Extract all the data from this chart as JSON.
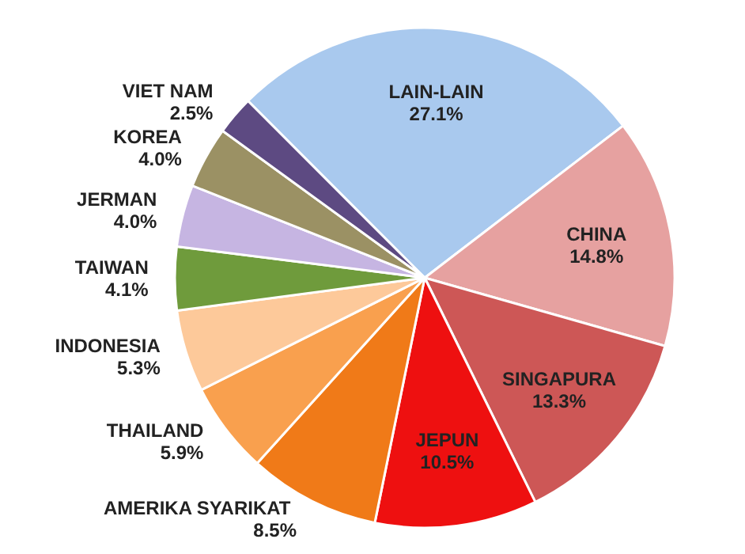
{
  "chart_data": {
    "type": "pie",
    "categories": [
      "LAIN-LAIN",
      "CHINA",
      "SINGAPURA",
      "JEPUN",
      "AMERIKA  SYARIKAT",
      "THAILAND",
      "INDONESIA",
      "TAIWAN",
      "JERMAN",
      "KOREA",
      "VIET NAM"
    ],
    "values": [
      27.1,
      14.8,
      13.3,
      10.5,
      8.5,
      5.9,
      5.3,
      4.1,
      4.0,
      4.0,
      2.5
    ],
    "value_labels": [
      "27.1%",
      "14.8%",
      "13.3%",
      "10.5%",
      "8.5%",
      "5.9%",
      "5.3%",
      "4.1%",
      "4.0%",
      "4.0%",
      "2.5%"
    ],
    "colors": [
      "#a9c9ee",
      "#e6a1a0",
      "#cd5756",
      "#ee1010",
      "#f07a18",
      "#f9a04e",
      "#fdc99a",
      "#6f9b3c",
      "#c6b5e2",
      "#9b9164",
      "#5d4a82"
    ]
  }
}
